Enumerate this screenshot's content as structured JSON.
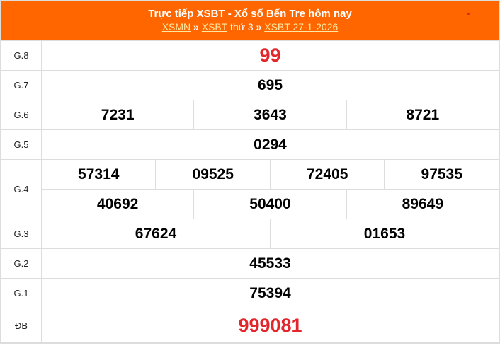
{
  "header": {
    "title": "Trực tiếp XSBT - Xổ số Bến Tre hôm nay",
    "links": [
      "XSMN",
      "XSBT",
      "XSBT 27-1-2026"
    ],
    "sep": "»",
    "day": "thứ 3"
  },
  "colors": {
    "header_bg": "#ff6600",
    "highlight": "#e3262c"
  },
  "prizes": {
    "g8": {
      "label": "G.8",
      "values": [
        "99"
      ]
    },
    "g7": {
      "label": "G.7",
      "values": [
        "695"
      ]
    },
    "g6": {
      "label": "G.6",
      "values": [
        "7231",
        "3643",
        "8721"
      ]
    },
    "g5": {
      "label": "G.5",
      "values": [
        "0294"
      ]
    },
    "g4": {
      "label": "G.4",
      "values": [
        "57314",
        "09525",
        "72405",
        "97535",
        "40692",
        "50400",
        "89649"
      ]
    },
    "g3": {
      "label": "G.3",
      "values": [
        "67624",
        "01653"
      ]
    },
    "g2": {
      "label": "G.2",
      "values": [
        "45533"
      ]
    },
    "g1": {
      "label": "G.1",
      "values": [
        "75394"
      ]
    },
    "db": {
      "label": "ĐB",
      "values": [
        "999081"
      ]
    }
  }
}
